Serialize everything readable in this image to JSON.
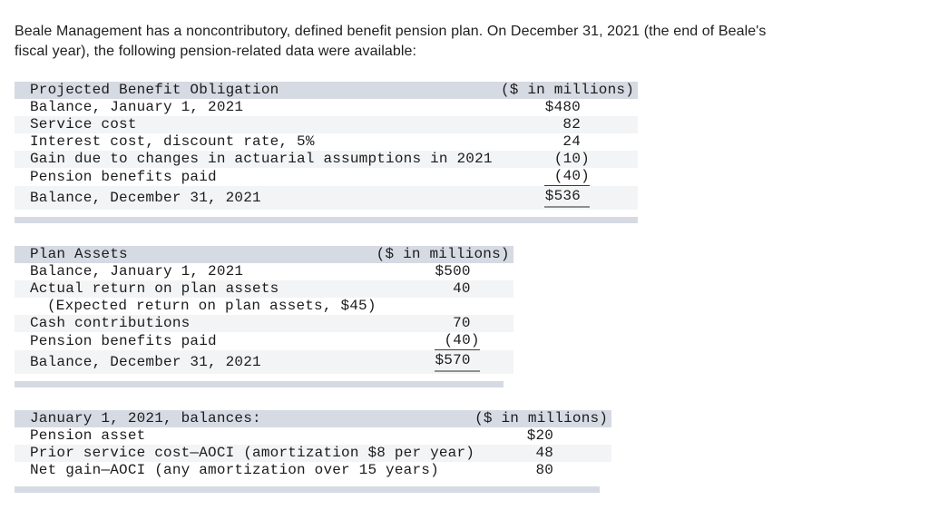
{
  "intro_lines": [
    "Beale Management has a noncontributory, defined benefit pension plan. On December 31, 2021 (the end of Beale's",
    "fiscal year), the following pension-related data were available:"
  ],
  "colors": {
    "header_bg": "#d6dae3",
    "stripe_bg": "#f3f4f6",
    "subtotal_rule": "#3d3d3d",
    "total_rule": "#8f8f8f"
  },
  "tables": [
    {
      "title": "Projected Benefit Obligation",
      "unit": "($ in millions)",
      "rows": [
        {
          "label": "Balance, January 1, 2021",
          "value": "$480"
        },
        {
          "label": "Service cost",
          "value": "82"
        },
        {
          "label": "Interest cost, discount rate, 5%",
          "value": "24"
        },
        {
          "label": "Gain due to changes in actuarial assumptions in 2021",
          "value": "(10)"
        },
        {
          "label": "Pension benefits paid",
          "value": "(40)"
        },
        {
          "label": "Balance, December 31, 2021",
          "value": "$536"
        }
      ]
    },
    {
      "title": "Plan Assets",
      "unit": "($ in millions)",
      "rows": [
        {
          "label": "Balance, January 1, 2021",
          "value": "$500"
        },
        {
          "label": "Actual return on plan assets",
          "value": "40"
        },
        {
          "label": "(Expected return on plan assets, $45)",
          "value": ""
        },
        {
          "label": "Cash contributions",
          "value": "70"
        },
        {
          "label": "Pension benefits paid",
          "value": "(40)"
        },
        {
          "label": "Balance, December 31, 2021",
          "value": "$570"
        }
      ]
    },
    {
      "title": "January 1, 2021, balances:",
      "unit": "($ in millions)",
      "rows": [
        {
          "label": "Pension asset",
          "value": "$20"
        },
        {
          "label": "Prior service cost—AOCI (amortization $8 per year)",
          "value": "48"
        },
        {
          "label": "Net gain—AOCI (any amortization over 15 years)",
          "value": "80"
        }
      ]
    }
  ]
}
